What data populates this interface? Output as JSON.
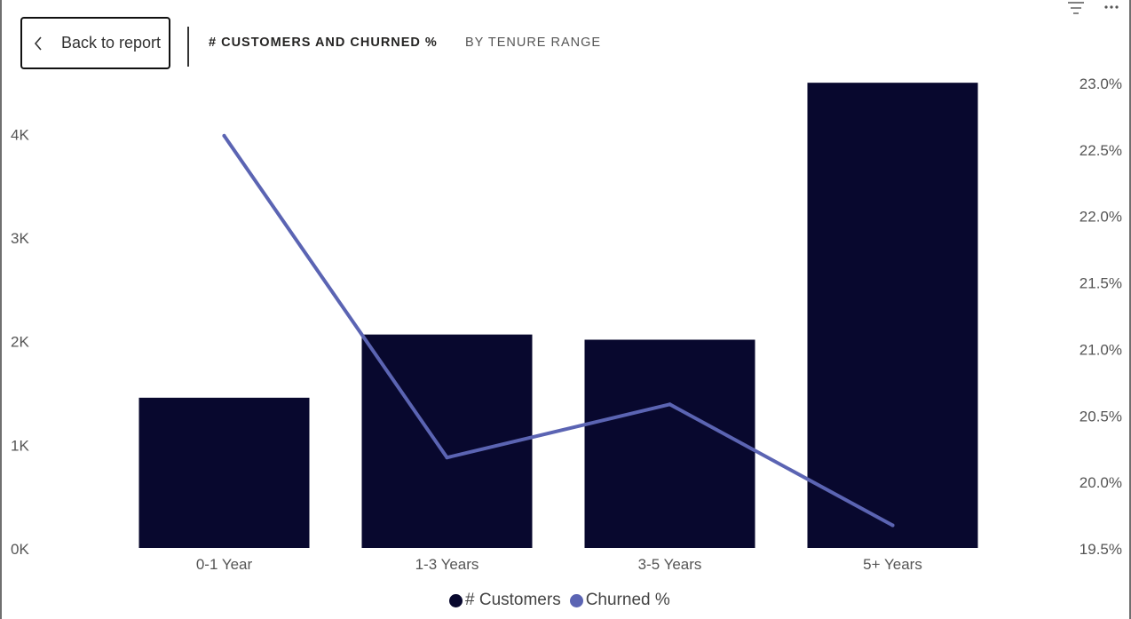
{
  "header": {
    "back_label": "Back to report",
    "title": "# CUSTOMERS AND CHURNED %",
    "subtitle": "BY TENURE RANGE"
  },
  "icons": {
    "back": "chevron-left-icon",
    "filter": "filter-icon",
    "more": "more-options-icon"
  },
  "colors": {
    "bar": "#08082e",
    "line": "#5b64b3",
    "axis_text": "#555555"
  },
  "legend": {
    "items": [
      {
        "label": "# Customers",
        "color": "#08082e"
      },
      {
        "label": "Churned %",
        "color": "#5b64b3"
      }
    ]
  },
  "chart_data": {
    "type": "bar",
    "categories": [
      "0-1 Year",
      "1-3 Years",
      "3-5 Years",
      "5+ Years"
    ],
    "series": [
      {
        "name": "# Customers",
        "type": "bar",
        "axis": "left",
        "values": [
          1450,
          2060,
          2010,
          4490
        ]
      },
      {
        "name": "Churned %",
        "type": "line",
        "axis": "right",
        "values": [
          22.6,
          20.18,
          20.58,
          19.67
        ]
      }
    ],
    "y_left": {
      "ylim": [
        0,
        4500
      ],
      "ticks": [
        0,
        1000,
        2000,
        3000,
        4000
      ],
      "tick_labels": [
        "0K",
        "1K",
        "2K",
        "3K",
        "4K"
      ]
    },
    "y_right": {
      "ylim": [
        19.5,
        23.0
      ],
      "ticks": [
        19.5,
        20.0,
        20.5,
        21.0,
        21.5,
        22.0,
        22.5,
        23.0
      ],
      "tick_labels": [
        "19.5%",
        "20.0%",
        "20.5%",
        "21.0%",
        "21.5%",
        "22.0%",
        "22.5%",
        "23.0%"
      ]
    },
    "grid": false,
    "legend_position": "bottom-center"
  }
}
